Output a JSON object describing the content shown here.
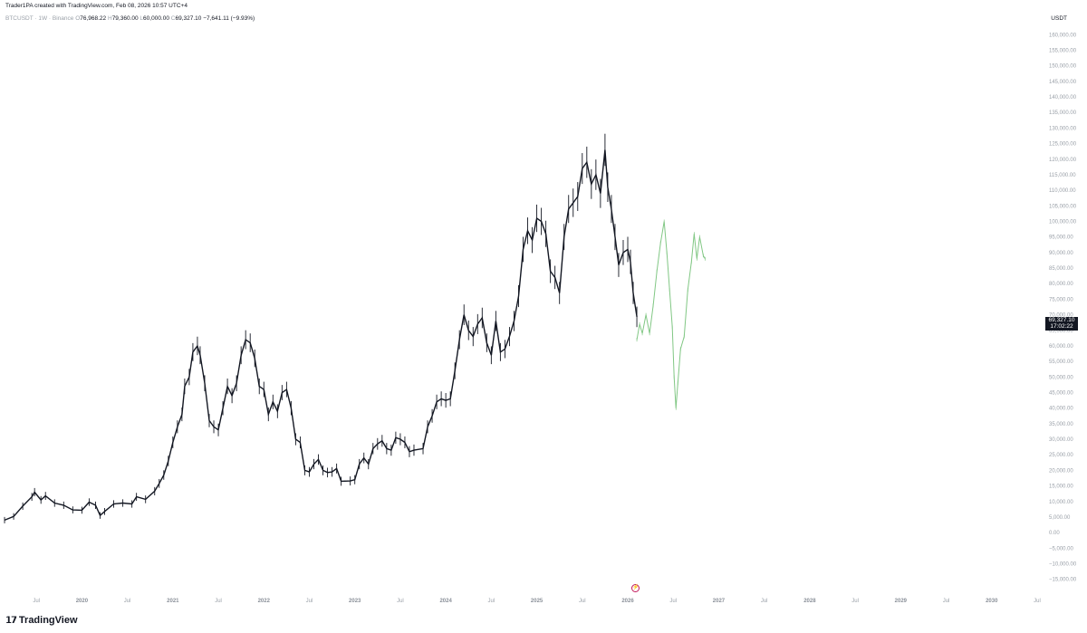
{
  "header": {
    "credit": "Trader1PA created with TradingView.com, Feb 08, 2026 10:57 UTC+4",
    "symbol_line": "BTCUSDT · 1W · Binance",
    "open_label": "O",
    "open": "76,968.22",
    "high_label": "H",
    "high": "79,360.00",
    "low_label": "L",
    "low": "60,000.00",
    "close_label": "C",
    "close": "69,327.10",
    "change": "−7,641.11 (−9.93%)",
    "currency": "USDT"
  },
  "price_tag": {
    "price": "69,327.10",
    "countdown": "17:02:22"
  },
  "footer": {
    "logo_mark": "𝟭𝟳",
    "brand": "TradingView"
  },
  "event_icon": "lightning-icon",
  "colors": {
    "candles": "#131722",
    "projection": "#81c784",
    "price_tag_bg": "#131722"
  },
  "chart_data": {
    "type": "line",
    "y_axis": {
      "ticks": [
        "−15,000.00",
        "−10,000.00",
        "−5,000.00",
        "0.00",
        "5,000.00",
        "10,000.00",
        "15,000.00",
        "20,000.00",
        "25,000.00",
        "30,000.00",
        "35,000.00",
        "40,000.00",
        "45,000.00",
        "50,000.00",
        "55,000.00",
        "60,000.00",
        "65,000.00",
        "70,000.00",
        "75,000.00",
        "80,000.00",
        "85,000.00",
        "90,000.00",
        "95,000.00",
        "100,000.00",
        "105,000.00",
        "110,000.00",
        "115,000.00",
        "120,000.00",
        "125,000.00",
        "130,000.00",
        "135,000.00",
        "140,000.00",
        "145,000.00",
        "150,000.00",
        "155,000.00",
        "160,000.00"
      ],
      "tick_values": [
        -15000,
        -10000,
        -5000,
        0,
        5000,
        10000,
        15000,
        20000,
        25000,
        30000,
        35000,
        40000,
        45000,
        50000,
        55000,
        60000,
        65000,
        70000,
        75000,
        80000,
        85000,
        90000,
        95000,
        100000,
        105000,
        110000,
        115000,
        120000,
        125000,
        130000,
        135000,
        140000,
        145000,
        150000,
        155000,
        160000
      ]
    },
    "x_axis": {
      "ticks": [
        "Jul",
        "2020",
        "Jul",
        "2021",
        "Jul",
        "2022",
        "Jul",
        "2023",
        "Jul",
        "2024",
        "Jul",
        "2025",
        "Jul",
        "2026",
        "Jul",
        "2027",
        "Jul",
        "2028",
        "Jul",
        "2029",
        "Jul",
        "2030",
        "Jul"
      ],
      "tick_years": [
        2019.5,
        2020,
        2020.5,
        2021,
        2021.5,
        2022,
        2022.5,
        2023,
        2023.5,
        2024,
        2024.5,
        2025,
        2025.5,
        2026,
        2026.5,
        2027,
        2027.5,
        2028,
        2028.5,
        2029,
        2029.5,
        2030,
        2030.5
      ]
    },
    "series": [
      {
        "points": [
          [
            2019.15,
            4000
          ],
          [
            2019.25,
            5200
          ],
          [
            2019.35,
            8500
          ],
          [
            2019.45,
            11500
          ],
          [
            2019.48,
            13000
          ],
          [
            2019.55,
            10500
          ],
          [
            2019.6,
            11800
          ],
          [
            2019.7,
            9500
          ],
          [
            2019.8,
            8800
          ],
          [
            2019.9,
            7300
          ],
          [
            2020.0,
            7200
          ],
          [
            2020.08,
            9800
          ],
          [
            2020.15,
            8800
          ],
          [
            2020.2,
            5500
          ],
          [
            2020.25,
            6800
          ],
          [
            2020.35,
            9200
          ],
          [
            2020.45,
            9500
          ],
          [
            2020.55,
            9200
          ],
          [
            2020.6,
            11500
          ],
          [
            2020.7,
            10700
          ],
          [
            2020.8,
            13300
          ],
          [
            2020.85,
            15800
          ],
          [
            2020.9,
            18500
          ],
          [
            2020.95,
            23000
          ],
          [
            2021.0,
            29000
          ],
          [
            2021.05,
            34000
          ],
          [
            2021.1,
            38000
          ],
          [
            2021.13,
            47000
          ],
          [
            2021.18,
            50000
          ],
          [
            2021.22,
            58000
          ],
          [
            2021.27,
            60000
          ],
          [
            2021.3,
            57000
          ],
          [
            2021.35,
            48000
          ],
          [
            2021.4,
            36000
          ],
          [
            2021.45,
            34000
          ],
          [
            2021.5,
            33000
          ],
          [
            2021.55,
            40000
          ],
          [
            2021.6,
            47000
          ],
          [
            2021.65,
            44000
          ],
          [
            2021.7,
            48000
          ],
          [
            2021.75,
            57000
          ],
          [
            2021.8,
            62000
          ],
          [
            2021.85,
            61000
          ],
          [
            2021.9,
            56000
          ],
          [
            2021.95,
            47000
          ],
          [
            2022.0,
            46000
          ],
          [
            2022.05,
            38000
          ],
          [
            2022.1,
            42000
          ],
          [
            2022.15,
            39000
          ],
          [
            2022.2,
            45000
          ],
          [
            2022.25,
            46000
          ],
          [
            2022.3,
            40000
          ],
          [
            2022.35,
            30000
          ],
          [
            2022.4,
            29000
          ],
          [
            2022.45,
            20000
          ],
          [
            2022.5,
            19500
          ],
          [
            2022.55,
            22000
          ],
          [
            2022.6,
            23500
          ],
          [
            2022.65,
            20000
          ],
          [
            2022.7,
            19300
          ],
          [
            2022.75,
            19500
          ],
          [
            2022.8,
            20600
          ],
          [
            2022.85,
            16500
          ],
          [
            2022.95,
            16600
          ],
          [
            2023.0,
            17000
          ],
          [
            2023.05,
            22000
          ],
          [
            2023.1,
            24000
          ],
          [
            2023.15,
            22000
          ],
          [
            2023.2,
            27000
          ],
          [
            2023.25,
            28500
          ],
          [
            2023.3,
            29500
          ],
          [
            2023.35,
            27000
          ],
          [
            2023.4,
            26500
          ],
          [
            2023.45,
            30500
          ],
          [
            2023.5,
            30000
          ],
          [
            2023.55,
            29000
          ],
          [
            2023.6,
            26000
          ],
          [
            2023.65,
            26500
          ],
          [
            2023.75,
            27000
          ],
          [
            2023.8,
            34000
          ],
          [
            2023.85,
            37500
          ],
          [
            2023.9,
            42000
          ],
          [
            2023.95,
            43000
          ],
          [
            2024.0,
            42500
          ],
          [
            2024.05,
            43000
          ],
          [
            2024.1,
            52000
          ],
          [
            2024.15,
            62000
          ],
          [
            2024.2,
            70000
          ],
          [
            2024.25,
            65000
          ],
          [
            2024.3,
            63000
          ],
          [
            2024.35,
            67000
          ],
          [
            2024.4,
            69000
          ],
          [
            2024.45,
            61000
          ],
          [
            2024.5,
            57000
          ],
          [
            2024.55,
            68000
          ],
          [
            2024.6,
            58000
          ],
          [
            2024.65,
            59000
          ],
          [
            2024.7,
            63000
          ],
          [
            2024.75,
            68000
          ],
          [
            2024.8,
            76000
          ],
          [
            2024.85,
            91000
          ],
          [
            2024.9,
            97000
          ],
          [
            2024.95,
            94000
          ],
          [
            2025.0,
            101000
          ],
          [
            2025.05,
            100000
          ],
          [
            2025.1,
            96000
          ],
          [
            2025.15,
            84000
          ],
          [
            2025.2,
            82000
          ],
          [
            2025.25,
            77000
          ],
          [
            2025.3,
            95000
          ],
          [
            2025.35,
            104000
          ],
          [
            2025.4,
            106000
          ],
          [
            2025.45,
            108000
          ],
          [
            2025.5,
            117000
          ],
          [
            2025.55,
            119000
          ],
          [
            2025.6,
            112000
          ],
          [
            2025.65,
            115000
          ],
          [
            2025.7,
            109000
          ],
          [
            2025.75,
            123000
          ],
          [
            2025.78,
            111000
          ],
          [
            2025.82,
            104000
          ],
          [
            2025.86,
            95000
          ],
          [
            2025.9,
            86000
          ],
          [
            2025.95,
            90000
          ],
          [
            2026.0,
            91000
          ],
          [
            2026.03,
            87000
          ],
          [
            2026.06,
            77000
          ],
          [
            2026.1,
            69327
          ]
        ]
      },
      {
        "points": [
          [
            2026.1,
            62000
          ],
          [
            2026.13,
            67000
          ],
          [
            2026.16,
            64000
          ],
          [
            2026.2,
            70000
          ],
          [
            2026.24,
            64000
          ],
          [
            2026.28,
            73000
          ],
          [
            2026.32,
            84000
          ],
          [
            2026.36,
            93000
          ],
          [
            2026.4,
            100000
          ],
          [
            2026.43,
            90000
          ],
          [
            2026.46,
            78000
          ],
          [
            2026.49,
            66000
          ],
          [
            2026.51,
            50000
          ],
          [
            2026.53,
            40000
          ],
          [
            2026.55,
            48000
          ],
          [
            2026.58,
            59000
          ],
          [
            2026.62,
            63000
          ],
          [
            2026.66,
            78000
          ],
          [
            2026.7,
            87000
          ],
          [
            2026.73,
            96000
          ],
          [
            2026.76,
            88000
          ],
          [
            2026.79,
            95000
          ],
          [
            2026.83,
            89000
          ],
          [
            2026.85,
            88000
          ]
        ]
      }
    ],
    "ylim": [
      -18000,
      163000
    ],
    "xlim": [
      2019.1,
      2030.55
    ],
    "grid": false,
    "current_price": 69327.1
  }
}
